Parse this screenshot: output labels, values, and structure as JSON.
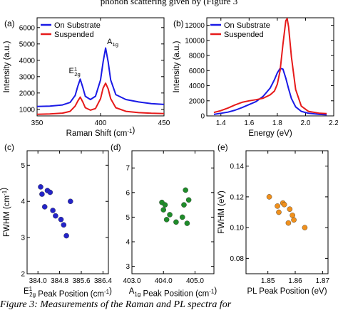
{
  "text_above": "phonon scattering given by (Figure 3",
  "caption": "Figure 3: Measurements of the Raman and PL spectra for",
  "chart_data": [
    {
      "panel": "(a)",
      "type": "line",
      "xlabel": "Raman Shift (cm-1)",
      "ylabel": "Intensity (a.u.)",
      "xlim": [
        350,
        450
      ],
      "ylim": [
        600,
        6600
      ],
      "xticks": [
        350,
        400,
        450
      ],
      "yticks": [
        1000,
        2000,
        3000,
        4000,
        5000,
        6000
      ],
      "legend": "top-left",
      "annotations": [
        "E12g",
        "A1g"
      ],
      "series": [
        {
          "name": "On Substrate",
          "color": "#1a1ae6",
          "x": [
            350,
            360,
            370,
            376,
            380,
            382,
            384,
            386,
            388,
            392,
            396,
            400,
            402,
            404,
            406,
            408,
            412,
            420,
            430,
            440,
            450
          ],
          "y": [
            1180,
            1200,
            1270,
            1420,
            1850,
            2400,
            2850,
            2350,
            1800,
            1600,
            1800,
            2800,
            3900,
            4750,
            3900,
            2800,
            1900,
            1600,
            1450,
            1350,
            1300
          ]
        },
        {
          "name": "Suspended",
          "color": "#e61a1a",
          "x": [
            350,
            360,
            370,
            376,
            380,
            382,
            384,
            386,
            388,
            392,
            396,
            400,
            402,
            404,
            406,
            408,
            412,
            420,
            430,
            440,
            450
          ],
          "y": [
            700,
            720,
            770,
            880,
            1200,
            1500,
            1750,
            1450,
            1100,
            950,
            1050,
            1650,
            2300,
            2600,
            2250,
            1650,
            1100,
            880,
            800,
            760,
            740
          ]
        }
      ]
    },
    {
      "panel": "(b)",
      "type": "line",
      "xlabel": "Energy (eV)",
      "ylabel": "Intensity (a.u.)",
      "xlim": [
        1.3,
        2.2
      ],
      "ylim": [
        0,
        13000
      ],
      "xticks": [
        1.4,
        1.6,
        1.8,
        2.0,
        2.2
      ],
      "yticks": [
        0,
        2000,
        4000,
        6000,
        8000,
        10000,
        12000
      ],
      "legend": "top-left",
      "series": [
        {
          "name": "On Substrate",
          "color": "#1a1ae6",
          "x": [
            1.35,
            1.4,
            1.45,
            1.5,
            1.55,
            1.6,
            1.65,
            1.7,
            1.75,
            1.78,
            1.8,
            1.82,
            1.84,
            1.86,
            1.88,
            1.9,
            1.93,
            1.97,
            2.02,
            2.1,
            2.15
          ],
          "y": [
            200,
            350,
            500,
            750,
            1100,
            1500,
            1900,
            2600,
            3700,
            4800,
            5700,
            6300,
            6200,
            5000,
            3600,
            2300,
            1200,
            600,
            350,
            200,
            150
          ]
        },
        {
          "name": "Suspended",
          "color": "#e61a1a",
          "x": [
            1.35,
            1.4,
            1.45,
            1.5,
            1.55,
            1.6,
            1.65,
            1.7,
            1.75,
            1.78,
            1.8,
            1.82,
            1.84,
            1.86,
            1.87,
            1.88,
            1.9,
            1.93,
            1.97,
            2.02,
            2.1,
            2.15
          ],
          "y": [
            450,
            700,
            1050,
            1450,
            1800,
            2000,
            2150,
            2350,
            2800,
            3300,
            4200,
            6000,
            9500,
            12600,
            12900,
            11800,
            7800,
            3500,
            1300,
            600,
            350,
            300
          ]
        }
      ]
    },
    {
      "panel": "(c)",
      "type": "scatter",
      "xlabel": "E12g Peak Position (cm-1)",
      "ylabel": "FWHM (cm-1)",
      "xlim": [
        383.6,
        386.6
      ],
      "ylim": [
        2,
        5.4
      ],
      "xticks": [
        384.0,
        384.8,
        385.6,
        386.4
      ],
      "yticks": [
        2,
        3,
        4,
        5
      ],
      "color": "#2424c8",
      "x": [
        384.1,
        384.15,
        384.25,
        384.35,
        384.45,
        384.55,
        384.65,
        384.85,
        384.95,
        385.05,
        385.2
      ],
      "y": [
        4.4,
        4.2,
        3.85,
        4.3,
        4.25,
        3.75,
        3.6,
        3.5,
        3.35,
        3.05,
        4.0
      ]
    },
    {
      "panel": "(d)",
      "type": "scatter",
      "xlabel": "A1g Peak Position (cm-1)",
      "ylabel": "",
      "xlim": [
        403.0,
        405.6
      ],
      "ylim": [
        2.7,
        7.7
      ],
      "xticks": [
        403.0,
        404.0,
        405.0
      ],
      "yticks": [
        3,
        4,
        5,
        6,
        7
      ],
      "color": "#1f8c2a",
      "x": [
        403.95,
        404.0,
        404.05,
        404.1,
        404.2,
        404.4,
        404.6,
        404.65,
        404.7,
        404.75,
        404.8
      ],
      "y": [
        5.6,
        5.3,
        5.5,
        4.9,
        5.1,
        4.8,
        5.0,
        5.5,
        6.1,
        4.75,
        5.7
      ]
    },
    {
      "panel": "(e)",
      "type": "scatter",
      "xlabel": "PL Peak Position (eV)",
      "ylabel": "FWHM (eV)",
      "xlim": [
        1.842,
        1.872
      ],
      "ylim": [
        0.07,
        0.15
      ],
      "xticks": [
        1.85,
        1.86,
        1.87
      ],
      "yticks": [
        0.08,
        0.1,
        0.12,
        0.14
      ],
      "color": "#f0901c",
      "x": [
        1.8505,
        1.8535,
        1.854,
        1.8555,
        1.856,
        1.8575,
        1.858,
        1.859,
        1.8595,
        1.8635
      ],
      "y": [
        0.12,
        0.114,
        0.11,
        0.116,
        0.115,
        0.103,
        0.112,
        0.108,
        0.105,
        0.1
      ]
    }
  ]
}
